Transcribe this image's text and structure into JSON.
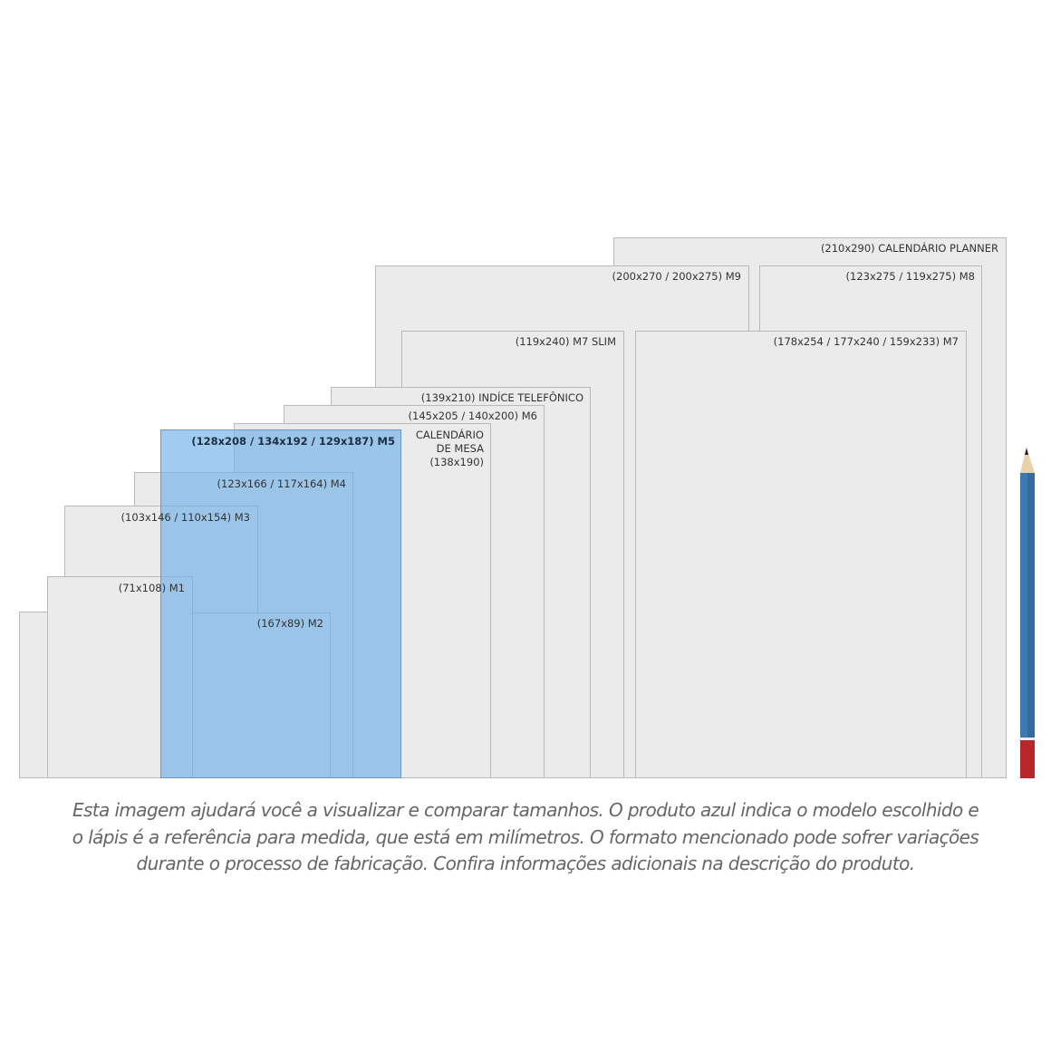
{
  "items": [
    {
      "id": "planner",
      "label": "(210x290) CALENDÁRIO PLANNER"
    },
    {
      "id": "m9",
      "label": "(200x270 / 200x275) M9"
    },
    {
      "id": "m8",
      "label": "(123x275 / 119x275) M8"
    },
    {
      "id": "m7slim",
      "label": "(119x240) M7 SLIM"
    },
    {
      "id": "m7",
      "label": "(178x254 / 177x240 / 159x233) M7"
    },
    {
      "id": "indice",
      "label": "(139x210) INDÍCE TELEFÔNICO"
    },
    {
      "id": "m6",
      "label": "(145x205 / 140x200) M6"
    },
    {
      "id": "calendario",
      "label_lines": [
        "CALENDÁRIO",
        "DE MESA",
        "(138x190)"
      ]
    },
    {
      "id": "m4",
      "label": "(123x166 / 117x164) M4"
    },
    {
      "id": "m3",
      "label": "(103x146 / 110x154) M3"
    },
    {
      "id": "m1",
      "label": "(71x108) M1"
    },
    {
      "id": "m2",
      "label": "(167x89) M2"
    },
    {
      "id": "m5",
      "label": "(128x208 / 134x192 / 129x187) M5",
      "selected": true
    }
  ],
  "colors": {
    "selected": "#6eafe6",
    "box": "#ebebeb",
    "pencil_body": "#3f78b0",
    "pencil_end": "#b8262b"
  },
  "pencil": {
    "icon": "pencil-reference-icon"
  },
  "caption": [
    "Esta imagem ajudará você a visualizar e comparar tamanhos. O produto azul indica o modelo escolhido e",
    "o lápis é a referência para medida, que está em milímetros. O formato mencionado pode sofrer variações",
    "durante o processo de fabricação. Confira informações adicionais na descrição do produto."
  ]
}
